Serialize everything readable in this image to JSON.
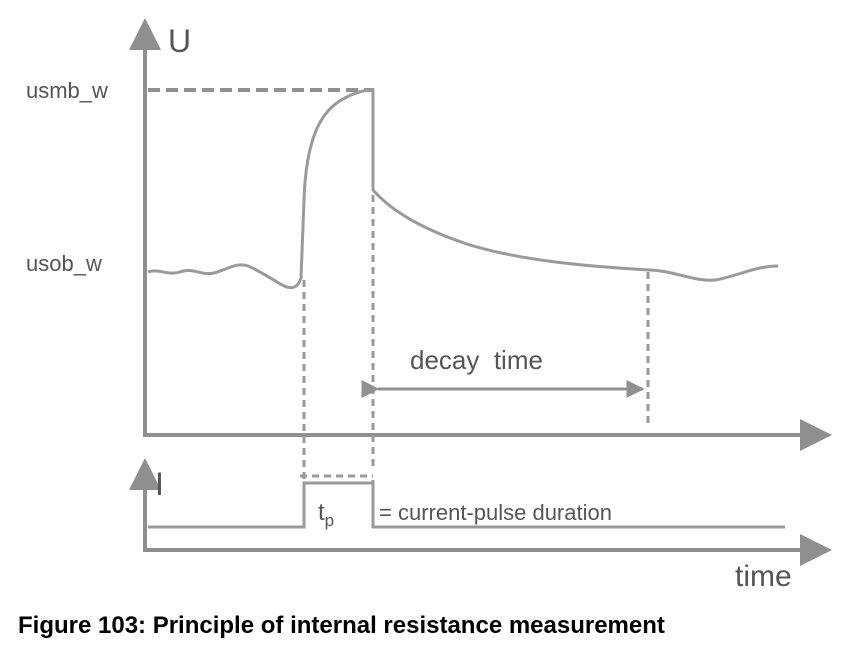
{
  "voltage_axis_label": "U",
  "current_axis_label": "I",
  "time_axis_label": "time",
  "level_high_label": "usmb_w",
  "level_low_label": "usob_w",
  "decay_label": "decay  time",
  "pulse_symbol": "t",
  "pulse_symbol_subscript": "p",
  "pulse_description": "= current-pulse duration",
  "caption": "Figure 103: Principle of internal resistance measurement"
}
